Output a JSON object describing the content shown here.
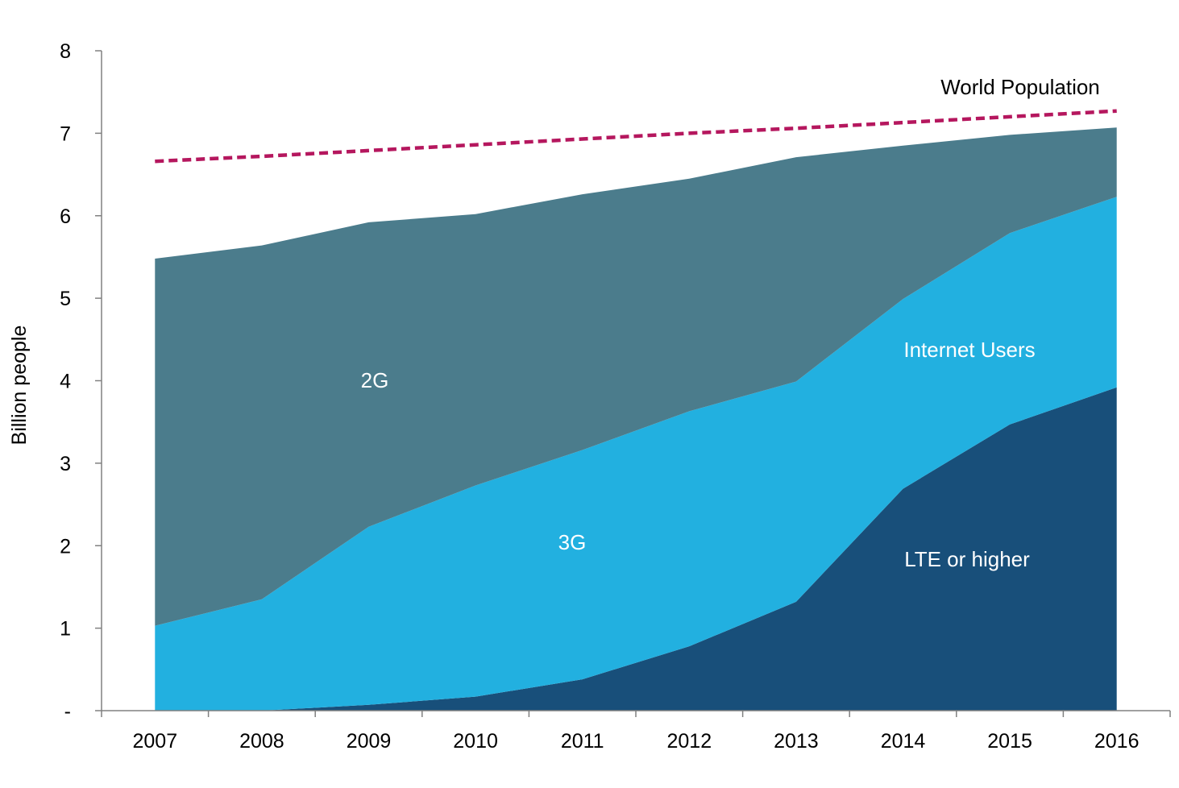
{
  "chart_data": {
    "type": "area",
    "categories": [
      "2007",
      "2008",
      "2009",
      "2010",
      "2011",
      "2012",
      "2013",
      "2014",
      "2015",
      "2016"
    ],
    "ylabel": "Billion people",
    "xlabel": "",
    "ylim": [
      0,
      8
    ],
    "yticks": [
      {
        "value": 0,
        "label": "-"
      },
      {
        "value": 1,
        "label": "1"
      },
      {
        "value": 2,
        "label": "2"
      },
      {
        "value": 3,
        "label": "3"
      },
      {
        "value": 4,
        "label": "4"
      },
      {
        "value": 5,
        "label": "5"
      },
      {
        "value": 6,
        "label": "6"
      },
      {
        "value": 7,
        "label": "7"
      },
      {
        "value": 8,
        "label": "8"
      }
    ],
    "stacked_series": [
      {
        "key": "lte",
        "values": [
          0.0,
          0.0,
          0.07,
          0.17,
          0.38,
          0.78,
          1.32,
          2.69,
          3.47,
          3.92
        ],
        "color": "#184f7a"
      },
      {
        "key": "3g",
        "values": [
          1.03,
          1.35,
          2.16,
          2.56,
          2.78,
          2.85,
          2.67,
          2.3,
          2.32,
          2.31
        ],
        "color": "#22b0e0"
      },
      {
        "key": "2g",
        "values": [
          4.45,
          4.29,
          3.69,
          3.29,
          3.1,
          2.82,
          2.72,
          1.86,
          1.19,
          0.84
        ],
        "color": "#4b7c8c"
      }
    ],
    "world_population": {
      "values": [
        6.66,
        6.72,
        6.79,
        6.86,
        6.93,
        7.0,
        7.06,
        7.13,
        7.2,
        7.27
      ],
      "color": "#b5175e"
    },
    "annotations": {
      "g2": "2G",
      "g3": "3G",
      "lte": "LTE or higher",
      "internet_users": "Internet Users",
      "world_population": "World Population"
    }
  }
}
